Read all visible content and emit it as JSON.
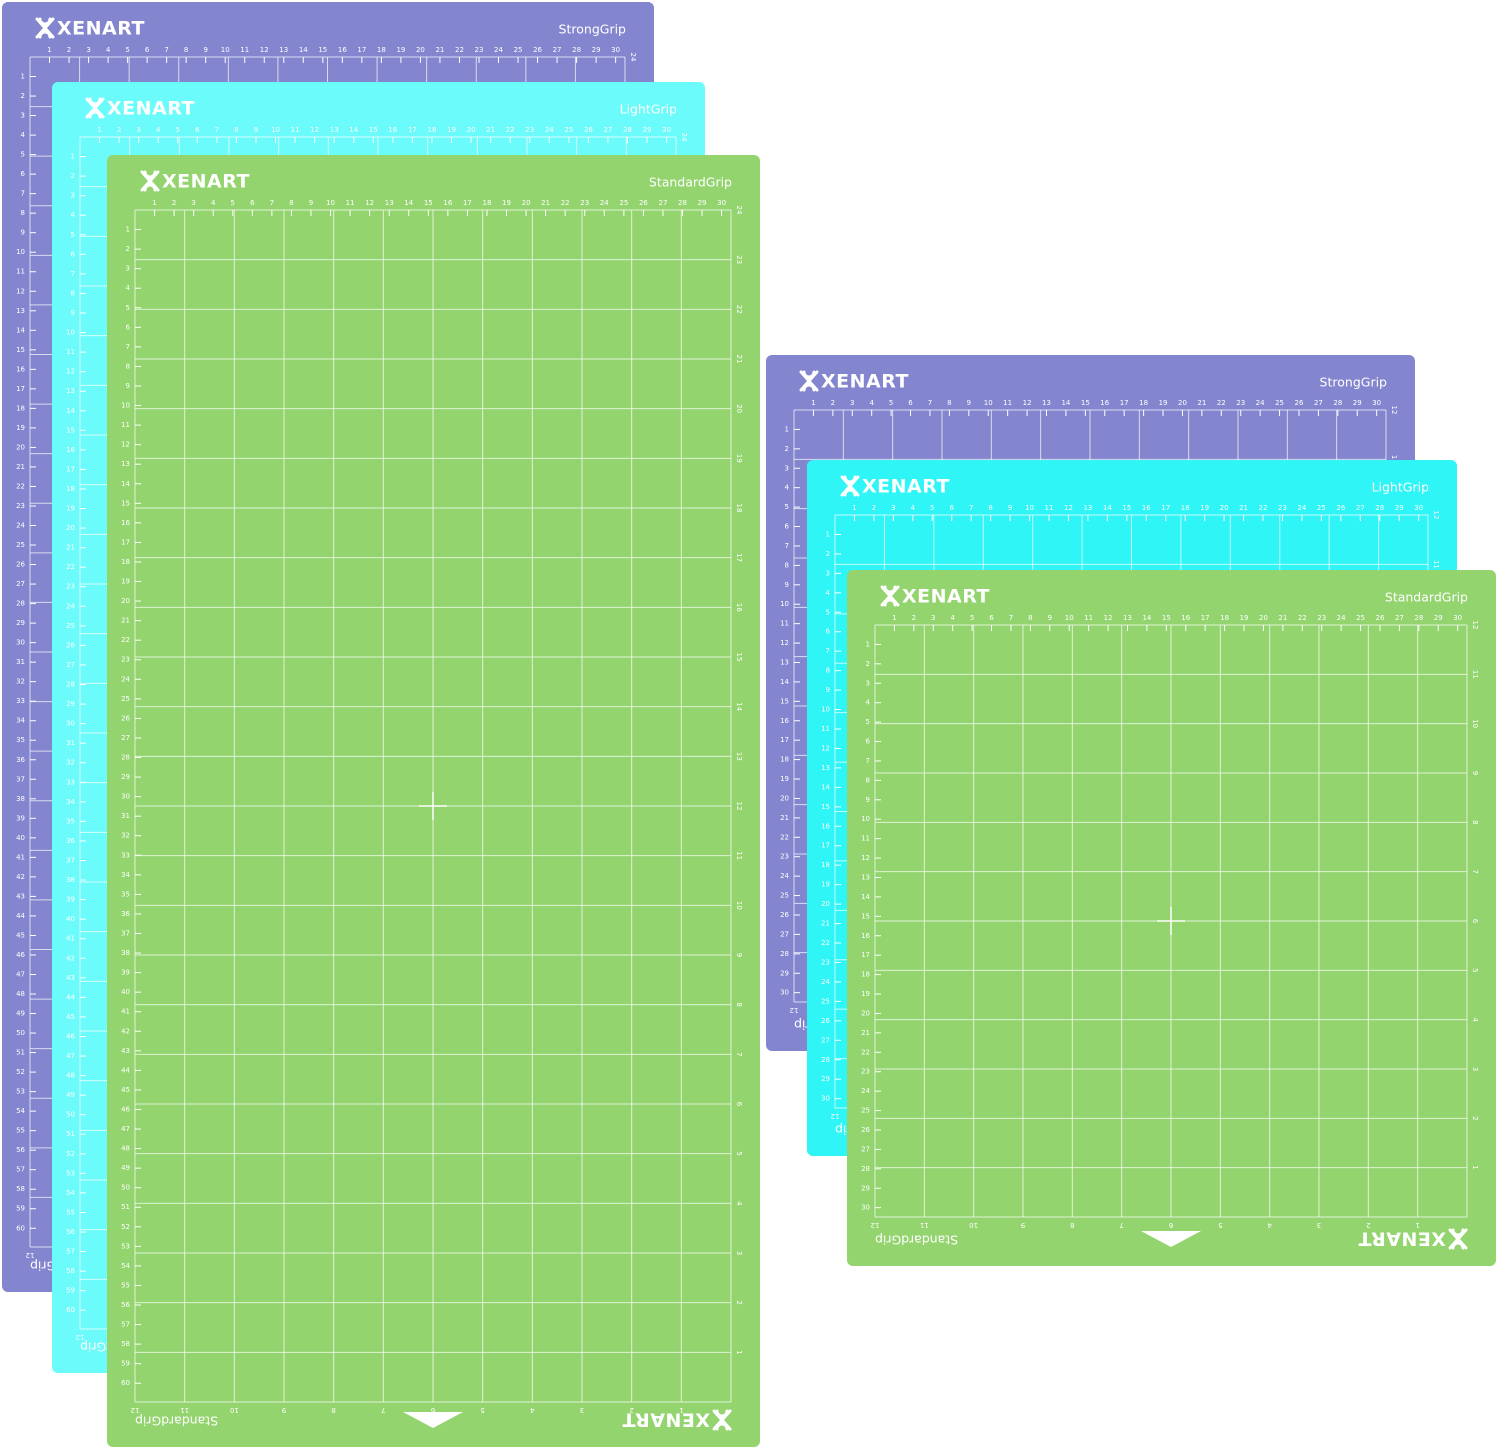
{
  "brand": "XENART",
  "long_mats": {
    "scales": {
      "top": [
        1,
        2,
        3,
        4,
        5,
        6,
        7,
        8,
        9,
        10,
        11,
        12,
        13,
        14,
        15,
        16,
        17,
        18,
        19,
        20,
        21,
        22,
        23,
        24,
        25,
        26,
        27,
        28,
        29,
        30
      ],
      "left": [
        1,
        2,
        3,
        4,
        5,
        6,
        7,
        8,
        9,
        10,
        11,
        12,
        13,
        14,
        15,
        16,
        17,
        18,
        19,
        20,
        21,
        22,
        23,
        24,
        25,
        26,
        27,
        28,
        29,
        30,
        31,
        32,
        33,
        34,
        35,
        36,
        37,
        38,
        39,
        40,
        41,
        42,
        43,
        44,
        45,
        46,
        47,
        48,
        49,
        50,
        51,
        52,
        53,
        54,
        55,
        56,
        57,
        58,
        59,
        60
      ],
      "right": [
        24,
        23,
        22,
        21,
        20,
        19,
        18,
        17,
        16,
        15,
        14,
        13,
        12,
        11,
        10,
        9,
        8,
        7,
        6,
        5,
        4,
        3,
        2,
        1
      ],
      "bottom": [
        12,
        11,
        10,
        9,
        8,
        7,
        6,
        5,
        4,
        3,
        2,
        1
      ]
    },
    "mats": [
      {
        "grip": "StrongGrip",
        "color": "#8385cf"
      },
      {
        "grip": "LightGrip",
        "color": "#6cfbfb"
      },
      {
        "grip": "StandardGrip",
        "color": "#93d46f"
      }
    ]
  },
  "square_mats": {
    "scales": {
      "top": [
        1,
        2,
        3,
        4,
        5,
        6,
        7,
        8,
        9,
        10,
        11,
        12,
        13,
        14,
        15,
        16,
        17,
        18,
        19,
        20,
        21,
        22,
        23,
        24,
        25,
        26,
        27,
        28,
        29,
        30
      ],
      "left": [
        1,
        2,
        3,
        4,
        5,
        6,
        7,
        8,
        9,
        10,
        11,
        12,
        13,
        14,
        15,
        16,
        17,
        18,
        19,
        20,
        21,
        22,
        23,
        24,
        25,
        26,
        27,
        28,
        29,
        30
      ],
      "right": [
        12,
        11,
        10,
        9,
        8,
        7,
        6,
        5,
        4,
        3,
        2,
        1
      ],
      "bottom": [
        12,
        11,
        10,
        9,
        8,
        7,
        6,
        5,
        4,
        3,
        2,
        1
      ]
    },
    "mats": [
      {
        "grip": "StrongGrip",
        "color": "#8385cf"
      },
      {
        "grip": "LightGrip",
        "color": "#2ff5f7"
      },
      {
        "grip": "StandardGrip",
        "color": "#93d46f"
      }
    ]
  }
}
